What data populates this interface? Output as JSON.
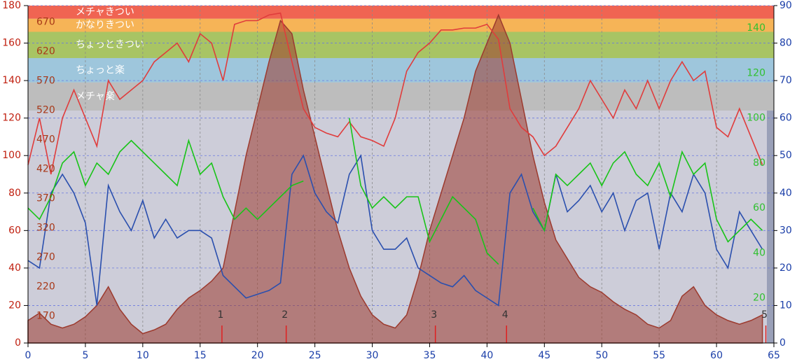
{
  "chart_data": {
    "type": "line",
    "x": [
      0,
      1,
      2,
      3,
      4,
      5,
      6,
      7,
      8,
      9,
      10,
      11,
      12,
      13,
      14,
      15,
      16,
      17,
      18,
      19,
      20,
      21,
      22,
      23,
      24,
      25,
      26,
      27,
      28,
      29,
      30,
      31,
      32,
      33,
      34,
      35,
      36,
      37,
      38,
      39,
      40,
      41,
      42,
      43,
      44,
      45,
      46,
      47,
      48,
      49,
      50,
      51,
      52,
      53,
      54,
      55,
      56,
      57,
      58,
      59,
      60,
      61,
      62,
      63,
      64
    ],
    "xlim": [
      0,
      65
    ],
    "xticks": [
      0,
      5,
      10,
      15,
      20,
      25,
      30,
      35,
      40,
      45,
      50,
      55,
      60,
      65
    ],
    "ylim": [
      0,
      180
    ],
    "yticks": [
      0,
      20,
      40,
      60,
      80,
      100,
      120,
      140,
      160,
      180
    ],
    "y2lim": [
      0,
      90
    ],
    "y2ticks": [
      0,
      10,
      20,
      30,
      40,
      50,
      60,
      70,
      80,
      90
    ],
    "y3lim": [
      0,
      150
    ],
    "y3ticks": [
      20,
      40,
      60,
      80,
      100,
      120,
      140
    ],
    "y4lim": [
      124,
      698
    ],
    "y4ticks": [
      170,
      220,
      270,
      320,
      370,
      420,
      470,
      520,
      570,
      620,
      670
    ],
    "grid": true,
    "zones": [
      {
        "name": "メチャきつい",
        "from": 173,
        "to": 180,
        "color": "#f06452"
      },
      {
        "name": "かなりきつい",
        "from": 166,
        "to": 173,
        "color": "#f6b457"
      },
      {
        "name": "ちょっときつい",
        "from": 152,
        "to": 166,
        "color": "#a8c464"
      },
      {
        "name": "ちょっと楽",
        "from": 139,
        "to": 152,
        "color": "#9ec6dc"
      },
      {
        "name": "メチャ楽",
        "from": 124,
        "to": 139,
        "color": "#bdbdbd"
      }
    ],
    "laps": [
      {
        "label": "1",
        "x": 16.9
      },
      {
        "label": "2",
        "x": 22.5
      },
      {
        "label": "3",
        "x": 35.5
      },
      {
        "label": "4",
        "x": 41.7
      },
      {
        "label": "5",
        "x": 64.3
      }
    ],
    "series": [
      {
        "axis": "y",
        "fill": true,
        "color": "#9c3a2e",
        "values": [
          12,
          16,
          10,
          8,
          10,
          14,
          20,
          30,
          18,
          10,
          5,
          7,
          10,
          18,
          24,
          28,
          33,
          40,
          70,
          100,
          125,
          150,
          172,
          165,
          135,
          110,
          85,
          60,
          40,
          25,
          15,
          10,
          8,
          15,
          35,
          60,
          80,
          100,
          120,
          145,
          160,
          175,
          160,
          130,
          100,
          75,
          55,
          45,
          35,
          30,
          27,
          22,
          18,
          15,
          10,
          8,
          12,
          25,
          30,
          20,
          15,
          12,
          10,
          12,
          15
        ]
      },
      {
        "axis": "y",
        "color": "#e03c3c",
        "values": [
          95,
          120,
          90,
          120,
          135,
          120,
          105,
          140,
          130,
          135,
          140,
          150,
          155,
          160,
          150,
          165,
          160,
          140,
          170,
          172,
          172,
          175,
          176,
          150,
          125,
          115,
          112,
          110,
          118,
          110,
          108,
          105,
          120,
          145,
          155,
          160,
          167,
          167,
          168,
          168,
          170,
          162,
          125,
          115,
          110,
          100,
          105,
          115,
          125,
          140,
          130,
          120,
          135,
          125,
          140,
          125,
          140,
          150,
          140,
          145,
          115,
          110,
          125,
          110,
          95
        ]
      },
      {
        "axis": "y2",
        "color": "#2a4fae",
        "values": [
          22,
          20,
          40,
          45,
          40,
          32,
          10,
          42,
          35,
          30,
          38,
          28,
          33,
          28,
          30,
          30,
          28,
          18,
          15,
          12,
          13,
          14,
          16,
          45,
          50,
          40,
          35,
          32,
          45,
          50,
          30,
          25,
          25,
          28,
          20,
          18,
          16,
          15,
          18,
          14,
          12,
          10,
          40,
          45,
          35,
          30,
          45,
          35,
          38,
          42,
          35,
          40,
          30,
          38,
          40,
          25,
          40,
          35,
          45,
          40,
          25,
          20,
          35,
          30,
          25
        ]
      },
      {
        "axis": "y3",
        "color": "#18c418",
        "values": [
          60,
          55,
          65,
          80,
          85,
          70,
          80,
          75,
          85,
          90,
          85,
          80,
          75,
          70,
          90,
          75,
          80,
          65,
          55,
          60,
          55,
          60,
          65,
          70,
          72,
          null,
          null,
          null,
          100,
          70,
          60,
          65,
          60,
          65,
          65,
          45,
          55,
          65,
          60,
          55,
          40,
          35,
          null,
          null,
          60,
          50,
          75,
          70,
          75,
          80,
          70,
          80,
          85,
          75,
          70,
          80,
          65,
          85,
          75,
          80,
          55,
          45,
          50,
          55,
          50
        ]
      }
    ]
  }
}
